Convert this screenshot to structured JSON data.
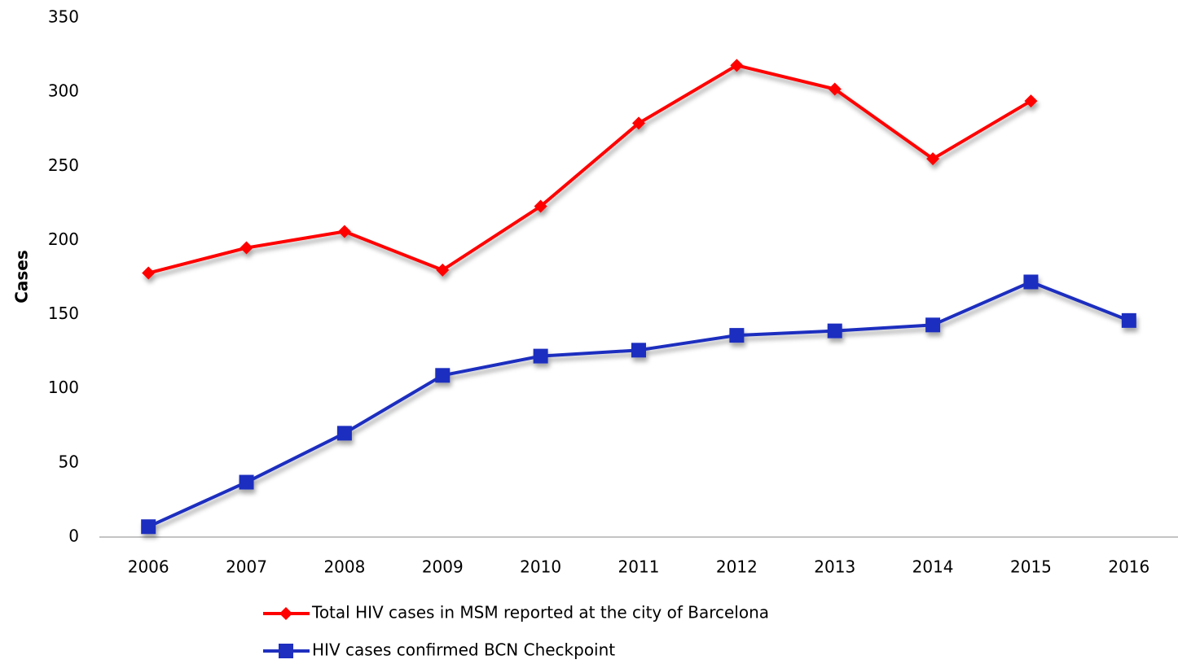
{
  "chart_data": {
    "type": "line",
    "y_label": "Cases",
    "categories": [
      "2006",
      "2007",
      "2008",
      "2009",
      "2010",
      "2011",
      "2012",
      "2013",
      "2014",
      "2015",
      "2016"
    ],
    "series": [
      {
        "name": "Total HIV cases in MSM reported at the city of Barcelona",
        "color": "#ff0000",
        "marker": "diamond",
        "values": [
          178,
          195,
          206,
          180,
          223,
          279,
          318,
          302,
          255,
          294,
          null
        ]
      },
      {
        "name": "HIV cases confirmed BCN Checkpoint",
        "color": "#1f2fbf",
        "marker": "square",
        "values": [
          7,
          37,
          70,
          109,
          122,
          126,
          136,
          139,
          143,
          172,
          146
        ]
      }
    ],
    "ylim": [
      0,
      350
    ],
    "yticks": [
      0,
      50,
      100,
      150,
      200,
      250,
      300,
      350
    ],
    "grid": false,
    "legend": "bottom"
  }
}
